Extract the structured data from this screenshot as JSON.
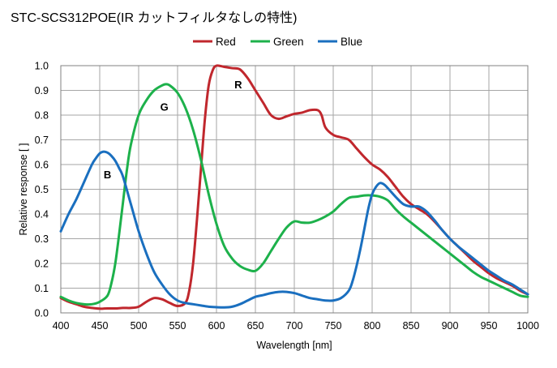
{
  "chart_data": {
    "type": "line",
    "title": "STC-SCS312POE(IR カットフィルタなしの特性)",
    "xlabel": "Wavelength [nm]",
    "ylabel": "Relative response [ ]",
    "xlim": [
      400,
      1000
    ],
    "ylim": [
      0,
      1.0
    ],
    "x_ticks": [
      "400",
      "450",
      "500",
      "550",
      "600",
      "650",
      "700",
      "750",
      "800",
      "850",
      "900",
      "950",
      "1000"
    ],
    "y_ticks": [
      "0.0",
      "0.1",
      "0.2",
      "0.3",
      "0.4",
      "0.5",
      "0.6",
      "0.7",
      "0.8",
      "0.9",
      "1.0"
    ],
    "grid": true,
    "legend_position": "top",
    "annotations": [
      {
        "text": "R",
        "x": 628,
        "y": 0.925
      },
      {
        "text": "G",
        "x": 533,
        "y": 0.835
      },
      {
        "text": "B",
        "x": 460,
        "y": 0.56
      }
    ],
    "series": [
      {
        "name": "Red",
        "color": "#c0272d",
        "x": [
          400,
          410,
          420,
          430,
          440,
          450,
          460,
          470,
          480,
          490,
          500,
          510,
          520,
          530,
          540,
          550,
          560,
          565,
          570,
          575,
          580,
          585,
          590,
          595,
          600,
          610,
          620,
          630,
          640,
          650,
          660,
          670,
          680,
          690,
          700,
          710,
          720,
          730,
          735,
          740,
          750,
          760,
          770,
          780,
          790,
          800,
          810,
          820,
          830,
          840,
          850,
          860,
          870,
          880,
          890,
          900,
          910,
          920,
          930,
          940,
          950,
          960,
          970,
          980,
          990,
          1000
        ],
        "y": [
          0.06,
          0.045,
          0.035,
          0.025,
          0.02,
          0.017,
          0.018,
          0.018,
          0.02,
          0.02,
          0.025,
          0.045,
          0.06,
          0.055,
          0.04,
          0.028,
          0.04,
          0.09,
          0.2,
          0.38,
          0.58,
          0.78,
          0.92,
          0.98,
          1.0,
          0.995,
          0.99,
          0.985,
          0.95,
          0.9,
          0.85,
          0.8,
          0.785,
          0.795,
          0.805,
          0.81,
          0.82,
          0.82,
          0.8,
          0.75,
          0.72,
          0.71,
          0.7,
          0.665,
          0.63,
          0.6,
          0.58,
          0.55,
          0.51,
          0.47,
          0.44,
          0.42,
          0.4,
          0.37,
          0.335,
          0.3,
          0.27,
          0.24,
          0.21,
          0.185,
          0.16,
          0.14,
          0.125,
          0.11,
          0.09,
          0.075
        ]
      },
      {
        "name": "Green",
        "color": "#1db14b",
        "x": [
          400,
          410,
          420,
          430,
          440,
          450,
          460,
          465,
          470,
          475,
          480,
          485,
          490,
          500,
          510,
          520,
          530,
          535,
          540,
          550,
          560,
          570,
          580,
          590,
          600,
          610,
          620,
          630,
          640,
          650,
          660,
          670,
          680,
          690,
          700,
          710,
          720,
          730,
          740,
          750,
          760,
          770,
          780,
          790,
          800,
          810,
          820,
          830,
          840,
          850,
          860,
          870,
          880,
          890,
          900,
          910,
          920,
          930,
          940,
          950,
          960,
          970,
          980,
          990,
          1000
        ],
        "y": [
          0.065,
          0.05,
          0.04,
          0.035,
          0.035,
          0.045,
          0.07,
          0.12,
          0.2,
          0.32,
          0.45,
          0.58,
          0.68,
          0.8,
          0.86,
          0.9,
          0.92,
          0.925,
          0.92,
          0.89,
          0.83,
          0.74,
          0.62,
          0.48,
          0.36,
          0.27,
          0.22,
          0.19,
          0.175,
          0.17,
          0.2,
          0.25,
          0.3,
          0.345,
          0.37,
          0.365,
          0.365,
          0.375,
          0.39,
          0.41,
          0.44,
          0.465,
          0.47,
          0.475,
          0.475,
          0.47,
          0.455,
          0.42,
          0.39,
          0.365,
          0.34,
          0.315,
          0.29,
          0.265,
          0.24,
          0.215,
          0.19,
          0.165,
          0.145,
          0.13,
          0.115,
          0.1,
          0.085,
          0.07,
          0.065
        ]
      },
      {
        "name": "Blue",
        "color": "#1a6fbf",
        "x": [
          400,
          410,
          420,
          430,
          440,
          445,
          450,
          455,
          460,
          465,
          470,
          475,
          480,
          490,
          500,
          510,
          520,
          530,
          540,
          550,
          560,
          570,
          580,
          590,
          600,
          610,
          620,
          630,
          640,
          650,
          660,
          670,
          680,
          690,
          700,
          710,
          720,
          730,
          740,
          750,
          760,
          770,
          775,
          780,
          785,
          790,
          795,
          800,
          805,
          810,
          815,
          820,
          830,
          840,
          850,
          860,
          870,
          880,
          890,
          900,
          910,
          920,
          930,
          940,
          950,
          960,
          970,
          980,
          990,
          1000
        ],
        "y": [
          0.33,
          0.4,
          0.46,
          0.53,
          0.6,
          0.625,
          0.645,
          0.652,
          0.648,
          0.635,
          0.615,
          0.585,
          0.55,
          0.44,
          0.33,
          0.24,
          0.165,
          0.115,
          0.075,
          0.05,
          0.04,
          0.035,
          0.03,
          0.025,
          0.023,
          0.022,
          0.025,
          0.035,
          0.05,
          0.065,
          0.072,
          0.08,
          0.085,
          0.085,
          0.08,
          0.07,
          0.06,
          0.055,
          0.05,
          0.05,
          0.06,
          0.09,
          0.13,
          0.19,
          0.26,
          0.34,
          0.42,
          0.48,
          0.51,
          0.525,
          0.52,
          0.505,
          0.47,
          0.44,
          0.43,
          0.43,
          0.41,
          0.375,
          0.335,
          0.3,
          0.27,
          0.245,
          0.22,
          0.195,
          0.17,
          0.15,
          0.13,
          0.115,
          0.095,
          0.075
        ]
      }
    ]
  }
}
